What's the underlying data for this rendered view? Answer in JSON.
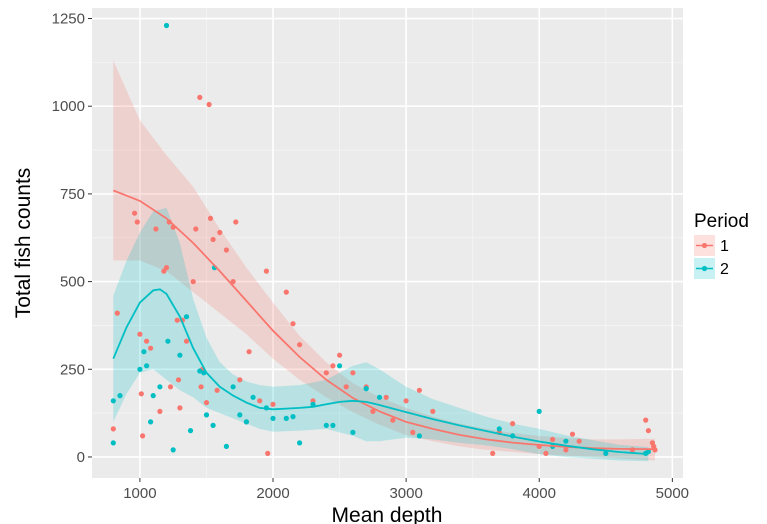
{
  "chart_data": {
    "type": "scatter",
    "xlabel": "Mean depth",
    "ylabel": "Total fish counts",
    "xlim": [
      640,
      5080
    ],
    "ylim": [
      -60,
      1280
    ],
    "x_ticks": [
      1000,
      2000,
      3000,
      4000,
      5000
    ],
    "x_tick_labels": [
      "1000",
      "2000",
      "3000",
      "4000",
      "5000"
    ],
    "y_ticks": [
      0,
      250,
      500,
      750,
      1000,
      1250
    ],
    "y_tick_labels": [
      "0",
      "250",
      "500",
      "750",
      "1000",
      "1250"
    ],
    "grid": true,
    "legend": {
      "title": "Period",
      "position": "right"
    },
    "series": [
      {
        "name": "1",
        "color": "#F8766D",
        "points": [
          [
            800,
            80
          ],
          [
            830,
            410
          ],
          [
            960,
            695
          ],
          [
            980,
            670
          ],
          [
            1000,
            350
          ],
          [
            1010,
            180
          ],
          [
            1020,
            60
          ],
          [
            1050,
            330
          ],
          [
            1080,
            310
          ],
          [
            1120,
            650
          ],
          [
            1150,
            130
          ],
          [
            1180,
            530
          ],
          [
            1200,
            540
          ],
          [
            1220,
            670
          ],
          [
            1230,
            200
          ],
          [
            1250,
            655
          ],
          [
            1280,
            390
          ],
          [
            1290,
            220
          ],
          [
            1300,
            140
          ],
          [
            1320,
            390
          ],
          [
            1350,
            330
          ],
          [
            1400,
            500
          ],
          [
            1420,
            650
          ],
          [
            1450,
            1025
          ],
          [
            1460,
            200
          ],
          [
            1470,
            250
          ],
          [
            1500,
            155
          ],
          [
            1520,
            1005
          ],
          [
            1530,
            680
          ],
          [
            1550,
            620
          ],
          [
            1580,
            190
          ],
          [
            1600,
            640
          ],
          [
            1650,
            590
          ],
          [
            1700,
            500
          ],
          [
            1720,
            670
          ],
          [
            1750,
            220
          ],
          [
            1800,
            100
          ],
          [
            1820,
            300
          ],
          [
            1900,
            160
          ],
          [
            1950,
            530
          ],
          [
            1960,
            10
          ],
          [
            2000,
            150
          ],
          [
            2100,
            470
          ],
          [
            2150,
            380
          ],
          [
            2200,
            320
          ],
          [
            2300,
            160
          ],
          [
            2400,
            240
          ],
          [
            2450,
            260
          ],
          [
            2500,
            290
          ],
          [
            2550,
            200
          ],
          [
            2600,
            240
          ],
          [
            2700,
            200
          ],
          [
            2750,
            130
          ],
          [
            2850,
            170
          ],
          [
            2900,
            105
          ],
          [
            3000,
            160
          ],
          [
            3050,
            70
          ],
          [
            3100,
            190
          ],
          [
            3200,
            130
          ],
          [
            3650,
            10
          ],
          [
            3700,
            70
          ],
          [
            3800,
            95
          ],
          [
            4000,
            30
          ],
          [
            4050,
            10
          ],
          [
            4100,
            50
          ],
          [
            4200,
            20
          ],
          [
            4250,
            65
          ],
          [
            4300,
            45
          ],
          [
            4700,
            20
          ],
          [
            4800,
            105
          ],
          [
            4820,
            75
          ],
          [
            4850,
            40
          ],
          [
            4860,
            30
          ],
          [
            4870,
            20
          ]
        ],
        "smooth": [
          [
            800,
            760
          ],
          [
            1000,
            730
          ],
          [
            1200,
            680
          ],
          [
            1400,
            610
          ],
          [
            1600,
            530
          ],
          [
            1800,
            445
          ],
          [
            2000,
            360
          ],
          [
            2200,
            285
          ],
          [
            2400,
            220
          ],
          [
            2600,
            168
          ],
          [
            2800,
            130
          ],
          [
            3000,
            100
          ],
          [
            3200,
            80
          ],
          [
            3400,
            63
          ],
          [
            3600,
            50
          ],
          [
            3800,
            41
          ],
          [
            4000,
            34
          ],
          [
            4200,
            29
          ],
          [
            4400,
            25
          ],
          [
            4600,
            23
          ],
          [
            4870,
            22
          ]
        ],
        "band_upper": [
          [
            800,
            1130
          ],
          [
            1000,
            960
          ],
          [
            1200,
            860
          ],
          [
            1400,
            770
          ],
          [
            1600,
            650
          ],
          [
            1800,
            540
          ],
          [
            2000,
            440
          ],
          [
            2200,
            345
          ],
          [
            2400,
            270
          ],
          [
            2600,
            210
          ],
          [
            2800,
            170
          ],
          [
            3000,
            140
          ],
          [
            3200,
            115
          ],
          [
            3400,
            95
          ],
          [
            3600,
            80
          ],
          [
            3800,
            68
          ],
          [
            4000,
            60
          ],
          [
            4200,
            54
          ],
          [
            4400,
            50
          ],
          [
            4600,
            50
          ],
          [
            4870,
            52
          ]
        ],
        "band_lower": [
          [
            800,
            560
          ],
          [
            1000,
            560
          ],
          [
            1200,
            530
          ],
          [
            1400,
            470
          ],
          [
            1600,
            410
          ],
          [
            1800,
            350
          ],
          [
            2000,
            280
          ],
          [
            2200,
            220
          ],
          [
            2400,
            170
          ],
          [
            2600,
            128
          ],
          [
            2800,
            92
          ],
          [
            3000,
            62
          ],
          [
            3200,
            45
          ],
          [
            3400,
            30
          ],
          [
            3600,
            20
          ],
          [
            3800,
            14
          ],
          [
            4000,
            8
          ],
          [
            4200,
            4
          ],
          [
            4400,
            0
          ],
          [
            4600,
            -4
          ],
          [
            4870,
            -10
          ]
        ]
      },
      {
        "name": "2",
        "color": "#00BFC4",
        "points": [
          [
            800,
            160
          ],
          [
            800,
            40
          ],
          [
            850,
            175
          ],
          [
            1000,
            250
          ],
          [
            1030,
            300
          ],
          [
            1050,
            260
          ],
          [
            1080,
            100
          ],
          [
            1100,
            175
          ],
          [
            1150,
            200
          ],
          [
            1200,
            1230
          ],
          [
            1210,
            330
          ],
          [
            1250,
            20
          ],
          [
            1300,
            290
          ],
          [
            1350,
            400
          ],
          [
            1380,
            75
          ],
          [
            1450,
            245
          ],
          [
            1480,
            240
          ],
          [
            1500,
            120
          ],
          [
            1550,
            90
          ],
          [
            1560,
            540
          ],
          [
            1650,
            30
          ],
          [
            1700,
            200
          ],
          [
            1750,
            120
          ],
          [
            1800,
            100
          ],
          [
            1850,
            170
          ],
          [
            1950,
            140
          ],
          [
            2000,
            110
          ],
          [
            2100,
            110
          ],
          [
            2150,
            115
          ],
          [
            2200,
            40
          ],
          [
            2300,
            150
          ],
          [
            2400,
            90
          ],
          [
            2450,
            90
          ],
          [
            2500,
            260
          ],
          [
            2600,
            70
          ],
          [
            2700,
            195
          ],
          [
            2800,
            170
          ],
          [
            3100,
            60
          ],
          [
            3700,
            80
          ],
          [
            3800,
            60
          ],
          [
            4000,
            130
          ],
          [
            4100,
            30
          ],
          [
            4200,
            45
          ],
          [
            4500,
            10
          ],
          [
            4800,
            10
          ],
          [
            4820,
            15
          ]
        ],
        "smooth": [
          [
            800,
            280
          ],
          [
            900,
            370
          ],
          [
            1000,
            440
          ],
          [
            1100,
            475
          ],
          [
            1150,
            478
          ],
          [
            1200,
            465
          ],
          [
            1300,
            400
          ],
          [
            1400,
            310
          ],
          [
            1500,
            240
          ],
          [
            1600,
            200
          ],
          [
            1700,
            175
          ],
          [
            1800,
            155
          ],
          [
            1900,
            140
          ],
          [
            2000,
            136
          ],
          [
            2100,
            138
          ],
          [
            2200,
            140
          ],
          [
            2300,
            143
          ],
          [
            2400,
            150
          ],
          [
            2500,
            157
          ],
          [
            2600,
            160
          ],
          [
            2700,
            157
          ],
          [
            2800,
            148
          ],
          [
            3000,
            128
          ],
          [
            3200,
            108
          ],
          [
            3400,
            90
          ],
          [
            3600,
            74
          ],
          [
            3800,
            58
          ],
          [
            4000,
            44
          ],
          [
            4200,
            32
          ],
          [
            4400,
            22
          ],
          [
            4600,
            14
          ],
          [
            4820,
            8
          ]
        ],
        "band_upper": [
          [
            800,
            460
          ],
          [
            900,
            560
          ],
          [
            1000,
            640
          ],
          [
            1100,
            700
          ],
          [
            1200,
            710
          ],
          [
            1300,
            610
          ],
          [
            1400,
            450
          ],
          [
            1500,
            340
          ],
          [
            1600,
            270
          ],
          [
            1700,
            235
          ],
          [
            1800,
            215
          ],
          [
            1900,
            205
          ],
          [
            2000,
            200
          ],
          [
            2200,
            205
          ],
          [
            2400,
            220
          ],
          [
            2600,
            260
          ],
          [
            2700,
            270
          ],
          [
            2800,
            250
          ],
          [
            3000,
            200
          ],
          [
            3200,
            165
          ],
          [
            3400,
            140
          ],
          [
            3600,
            115
          ],
          [
            3800,
            95
          ],
          [
            4000,
            80
          ],
          [
            4200,
            62
          ],
          [
            4400,
            48
          ],
          [
            4600,
            35
          ],
          [
            4820,
            28
          ]
        ],
        "band_lower": [
          [
            800,
            100
          ],
          [
            900,
            180
          ],
          [
            1000,
            240
          ],
          [
            1100,
            250
          ],
          [
            1200,
            220
          ],
          [
            1300,
            190
          ],
          [
            1400,
            170
          ],
          [
            1500,
            140
          ],
          [
            1600,
            125
          ],
          [
            1700,
            110
          ],
          [
            1800,
            95
          ],
          [
            1900,
            80
          ],
          [
            2000,
            72
          ],
          [
            2200,
            75
          ],
          [
            2400,
            80
          ],
          [
            2600,
            60
          ],
          [
            2700,
            45
          ],
          [
            2800,
            45
          ],
          [
            3000,
            55
          ],
          [
            3200,
            50
          ],
          [
            3400,
            40
          ],
          [
            3600,
            33
          ],
          [
            3800,
            22
          ],
          [
            4000,
            8
          ],
          [
            4200,
            0
          ],
          [
            4400,
            -5
          ],
          [
            4600,
            -10
          ],
          [
            4820,
            -12
          ]
        ]
      }
    ]
  }
}
